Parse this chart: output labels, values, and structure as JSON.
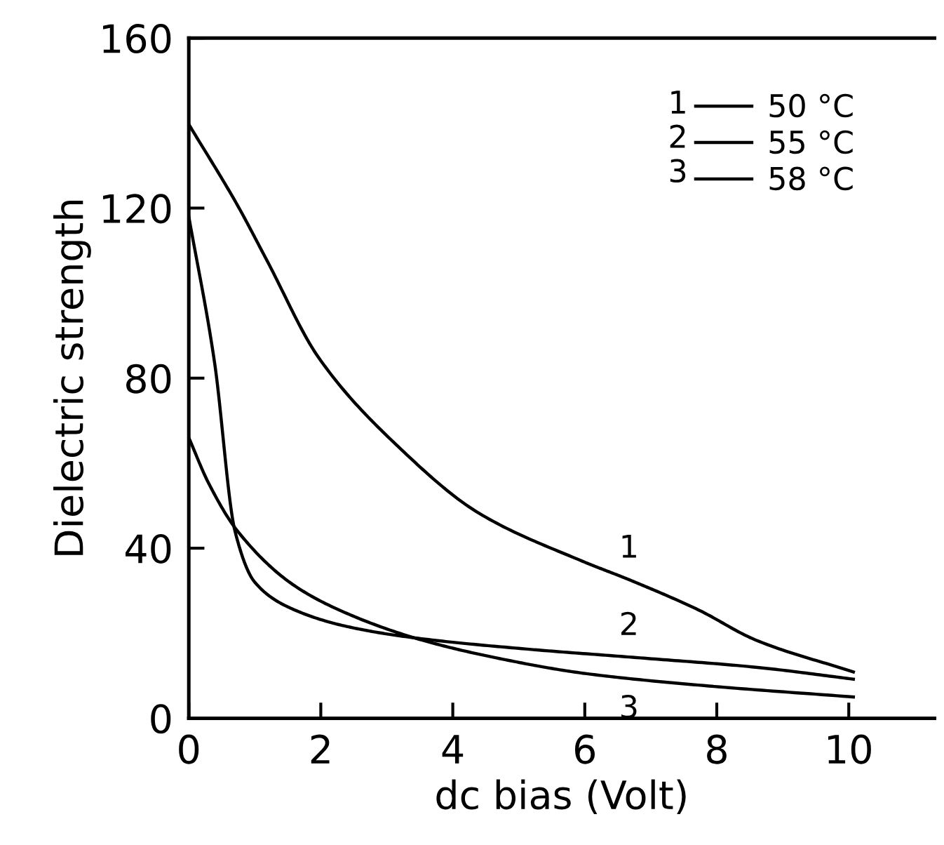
{
  "chart_data": {
    "type": "line",
    "xlabel": "dc bias (Volt)",
    "ylabel": "Dielectric strength",
    "xlim": [
      0,
      11.3
    ],
    "ylim": [
      0,
      160
    ],
    "xticks": [
      0,
      2,
      4,
      6,
      8,
      10
    ],
    "yticks": [
      0,
      40,
      80,
      120,
      160
    ],
    "grid": false,
    "legend": "top right",
    "marker": "none",
    "line_style": "solid",
    "series": [
      {
        "name": "50 °C",
        "color": "#000000",
        "x": [
          0,
          0.74,
          1.18,
          1.96,
          3.18,
          4.4,
          5.97,
          6.67,
          7.72,
          8.59,
          10.07
        ],
        "values": [
          139.7,
          120.6,
          107.8,
          85,
          63.8,
          48.2,
          36.9,
          32.6,
          25.5,
          18.4,
          10.9
        ]
      },
      {
        "name": "55 °C",
        "color": "#000000",
        "x": [
          0,
          0.39,
          0.7,
          1.0,
          1.6,
          2.48,
          3.53,
          5.1,
          6.84,
          8.59,
          10.07
        ],
        "values": [
          118,
          83.7,
          44,
          32,
          25.5,
          21.3,
          18.7,
          16.3,
          14.2,
          12,
          9.2
        ]
      },
      {
        "name": "58 °C",
        "color": "#000000",
        "x": [
          0,
          0.3,
          0.74,
          1.6,
          2.48,
          3.53,
          4.66,
          5.97,
          7.72,
          10.07
        ],
        "values": [
          66,
          55.3,
          44,
          31.2,
          24.1,
          18.4,
          14.2,
          10.6,
          7.8,
          5
        ]
      }
    ],
    "annotations": [
      "1",
      "2",
      "3"
    ]
  }
}
